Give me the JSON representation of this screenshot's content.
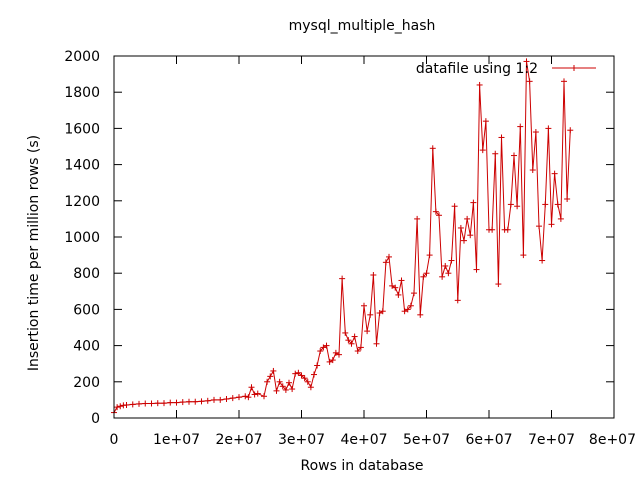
{
  "colors": {
    "series": "#cc0000",
    "axis": "#000000",
    "background": "#ffffff"
  },
  "chart_data": {
    "type": "line",
    "title": "mysql_multiple_hash",
    "xlabel": "Rows in database",
    "ylabel": "Insertion time per million rows (s)",
    "xlim": [
      0,
      80000000
    ],
    "ylim": [
      0,
      2000
    ],
    "x_ticks": [
      {
        "value": 0,
        "label": "0"
      },
      {
        "value": 10000000,
        "label": "1e+07"
      },
      {
        "value": 20000000,
        "label": "2e+07"
      },
      {
        "value": 30000000,
        "label": "3e+07"
      },
      {
        "value": 40000000,
        "label": "4e+07"
      },
      {
        "value": 50000000,
        "label": "5e+07"
      },
      {
        "value": 60000000,
        "label": "6e+07"
      },
      {
        "value": 70000000,
        "label": "7e+07"
      },
      {
        "value": 80000000,
        "label": "8e+07"
      }
    ],
    "y_ticks": [
      {
        "value": 0,
        "label": "0"
      },
      {
        "value": 200,
        "label": "200"
      },
      {
        "value": 400,
        "label": "400"
      },
      {
        "value": 600,
        "label": "600"
      },
      {
        "value": 800,
        "label": "800"
      },
      {
        "value": 1000,
        "label": "1000"
      },
      {
        "value": 1200,
        "label": "1200"
      },
      {
        "value": 1400,
        "label": "1400"
      },
      {
        "value": 1600,
        "label": "1600"
      },
      {
        "value": 1800,
        "label": "1800"
      },
      {
        "value": 2000,
        "label": "2000"
      }
    ],
    "grid": false,
    "legend": {
      "position": "top-right"
    },
    "series": [
      {
        "name": "datafile using 1:2",
        "marker": "+",
        "x": [
          0,
          500000,
          1000000,
          1500000,
          2000000,
          3000000,
          4000000,
          5000000,
          6000000,
          7000000,
          8000000,
          9000000,
          10000000,
          11000000,
          12000000,
          13000000,
          14000000,
          15000000,
          16000000,
          17000000,
          18000000,
          19000000,
          20000000,
          21000000,
          21500000,
          22000000,
          22500000,
          23000000,
          24000000,
          24500000,
          25000000,
          25500000,
          26000000,
          26500000,
          27000000,
          27500000,
          28000000,
          28500000,
          29000000,
          29500000,
          30000000,
          30500000,
          31000000,
          31500000,
          32000000,
          32500000,
          33000000,
          33500000,
          34000000,
          34500000,
          35000000,
          35500000,
          36000000,
          36500000,
          37000000,
          37500000,
          38000000,
          38500000,
          39000000,
          39500000,
          40000000,
          40500000,
          41000000,
          41500000,
          42000000,
          42500000,
          43000000,
          43500000,
          44000000,
          44500000,
          45000000,
          45500000,
          46000000,
          46500000,
          47000000,
          47500000,
          48000000,
          48500000,
          49000000,
          49500000,
          50000000,
          50500000,
          51000000,
          51500000,
          52000000,
          52500000,
          53000000,
          53500000,
          54000000,
          54500000,
          55000000,
          55500000,
          56000000,
          56500000,
          57000000,
          57500000,
          58000000,
          58500000,
          59000000,
          59500000,
          60000000,
          60500000,
          61000000,
          61500000,
          62000000,
          62500000,
          63000000,
          63500000,
          64000000,
          64500000,
          65000000,
          65500000,
          66000000,
          66500000,
          67000000,
          67500000,
          68000000,
          68500000,
          69000000,
          69500000,
          70000000,
          70500000,
          71000000,
          71500000,
          72000000,
          72500000,
          73000000
        ],
        "y": [
          30,
          60,
          65,
          70,
          72,
          75,
          78,
          80,
          80,
          82,
          82,
          85,
          85,
          88,
          90,
          90,
          92,
          95,
          100,
          100,
          105,
          110,
          115,
          120,
          115,
          170,
          130,
          135,
          120,
          200,
          230,
          260,
          150,
          200,
          175,
          155,
          195,
          160,
          245,
          250,
          235,
          220,
          200,
          170,
          240,
          290,
          370,
          390,
          400,
          310,
          320,
          360,
          350,
          770,
          470,
          430,
          410,
          450,
          370,
          390,
          620,
          480,
          570,
          790,
          410,
          580,
          590,
          860,
          890,
          730,
          720,
          680,
          760,
          590,
          600,
          620,
          690,
          1100,
          570,
          780,
          800,
          900,
          1490,
          1140,
          1120,
          780,
          840,
          800,
          870,
          1170,
          650,
          1050,
          980,
          1100,
          1010,
          1190,
          820,
          1840,
          1480,
          1640,
          1040,
          1040,
          1460,
          740,
          1550,
          1040,
          1040,
          1180,
          1450,
          1170,
          1610,
          900,
          1970,
          1860,
          1370,
          1580,
          1060,
          870,
          1180,
          1600,
          1070,
          1350,
          1180,
          1100,
          1860,
          1210,
          1590
        ]
      }
    ]
  }
}
